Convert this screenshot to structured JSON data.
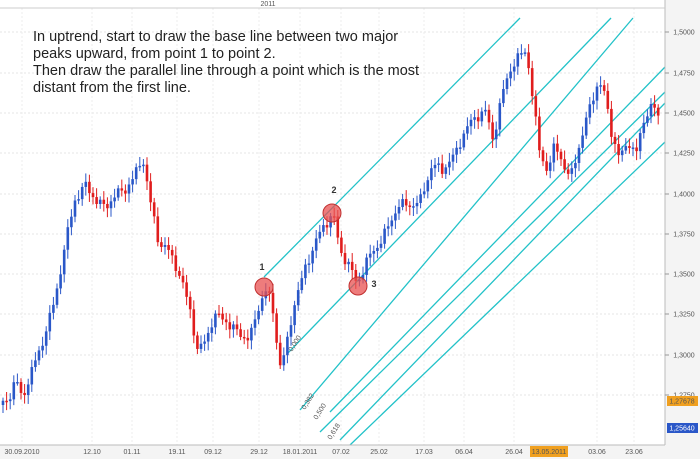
{
  "annotation": {
    "lines": [
      "In uptrend, start to draw the base line between two major",
      "peaks upward, from point 1 to point 2.",
      "Then draw the parallel line through a point which is the most",
      "distant from the first line."
    ]
  },
  "top_axis": {
    "year_label": "2011"
  },
  "price_axis": {
    "labels": [
      "1,5000",
      "1,4750",
      "1,4500",
      "1,4250",
      "1,4000",
      "1,3750",
      "1,3500",
      "1,3250",
      "1,3000",
      "1,2750"
    ],
    "current_price": "1,27678",
    "bottom_price": "1,25640"
  },
  "date_axis": {
    "labels": [
      "30.09.2010",
      "12.10",
      "01.11",
      "19.11",
      "09.12",
      "29.12",
      "18.01.2011",
      "07.02",
      "25.02",
      "17.03",
      "06.04",
      "26.04",
      "03.06",
      "23.06"
    ],
    "highlight": "13.05.2011"
  },
  "points": [
    {
      "label": "1"
    },
    {
      "label": "2"
    },
    {
      "label": "3"
    }
  ],
  "fib_labels": [
    "0,000",
    "0,382",
    "0,500",
    "0,618"
  ],
  "colors": {
    "bull": "#2a57c8",
    "bear": "#e01d1d",
    "channel": "#22c2c8",
    "marker": "#e85050",
    "highlight": "#f0a020"
  }
}
